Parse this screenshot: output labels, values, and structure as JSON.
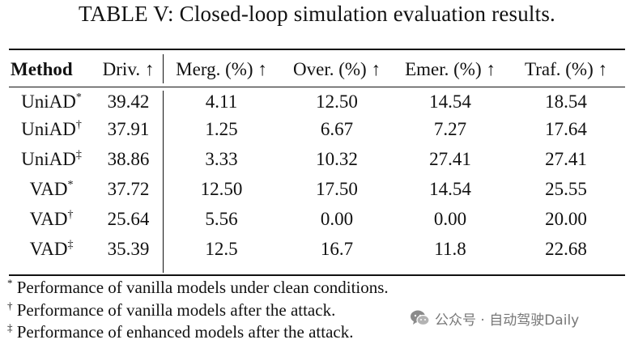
{
  "caption": "TABLE V: Closed-loop simulation evaluation results.",
  "headers": {
    "method": "Method",
    "driv": "Driv. ↑",
    "merg": "Merg. (%) ↑",
    "over": "Over. (%) ↑",
    "emer": "Emer. (%) ↑",
    "traf": "Traf. (%) ↑"
  },
  "rows": [
    {
      "method": "UniAD",
      "mark": "*",
      "driv": "39.42",
      "merg": "4.11",
      "over": "12.50",
      "emer": "14.54",
      "traf": "18.54"
    },
    {
      "method": "UniAD",
      "mark": "†",
      "driv": "37.91",
      "merg": "1.25",
      "over": "6.67",
      "emer": "7.27",
      "traf": "17.64"
    },
    {
      "method": "UniAD",
      "mark": "‡",
      "driv": "38.86",
      "merg": "3.33",
      "over": "10.32",
      "emer": "27.41",
      "traf": "27.41"
    },
    {
      "method": "VAD",
      "mark": "*",
      "driv": "37.72",
      "merg": "12.50",
      "over": "17.50",
      "emer": "14.54",
      "traf": "25.55"
    },
    {
      "method": "VAD",
      "mark": "†",
      "driv": "25.64",
      "merg": "5.56",
      "over": "0.00",
      "emer": "0.00",
      "traf": "20.00"
    },
    {
      "method": "VAD",
      "mark": "‡",
      "driv": "35.39",
      "merg": "12.5",
      "over": "16.7",
      "emer": "11.8",
      "traf": "22.68"
    }
  ],
  "notes": [
    {
      "mark": "*",
      "text": "Performance of vanilla models under clean conditions."
    },
    {
      "mark": "†",
      "text": "Performance of vanilla models after the attack."
    },
    {
      "mark": "‡",
      "text": "Performance of enhanced models after the attack."
    }
  ],
  "watermark": {
    "text": "公众号 · 自动驾驶Daily",
    "icon": "wechat-icon"
  }
}
